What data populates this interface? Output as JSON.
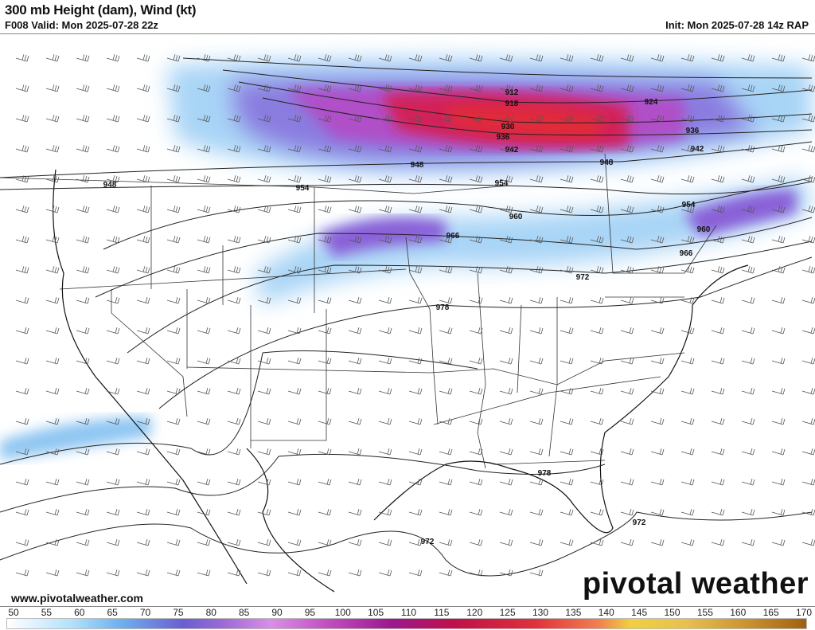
{
  "header": {
    "title": "300 mb Height (dam), Wind (kt)",
    "valid": "F008 Valid: Mon 2025-07-28 22z",
    "init": "Init: Mon 2025-07-28 14z RAP"
  },
  "footer": {
    "website": "www.pivotalweather.com",
    "brand": "pivotal weather"
  },
  "contour_labels": [
    "912",
    "918",
    "924",
    "930",
    "936",
    "936",
    "942",
    "942",
    "948",
    "948",
    "948",
    "954",
    "954",
    "954",
    "960",
    "960",
    "966",
    "966",
    "972",
    "972",
    "972",
    "978",
    "978"
  ],
  "colorbar": {
    "units": "kt",
    "ticks": [
      "50",
      "55",
      "60",
      "65",
      "70",
      "75",
      "80",
      "85",
      "90",
      "95",
      "100",
      "105",
      "110",
      "115",
      "120",
      "125",
      "130",
      "135",
      "140",
      "145",
      "150",
      "155",
      "160",
      "165",
      "170"
    ],
    "colors": {
      "low": "#b4e1fb",
      "mid": "#6a5fd0",
      "high": "#9c1890",
      "max": "#e0303a",
      "top": "#a06010"
    }
  }
}
